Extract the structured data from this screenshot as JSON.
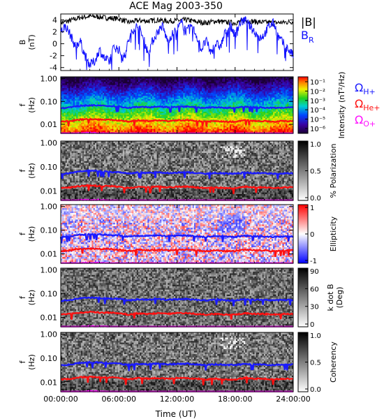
{
  "title": "ACE Mag 2003-350",
  "xlabel": "Time (UT)",
  "colors": {
    "total_field": "#000000",
    "radial_field": "#1010ff",
    "gyro_h": "#1a1aff",
    "gyro_he": "#ff1010",
    "gyro_o": "#ff10ff"
  },
  "chart_data": [
    {
      "panel": "field",
      "type": "line",
      "ylabel": "B (nT)",
      "ylabel_lines": [
        "B",
        "(nT)"
      ],
      "ylim": [
        -4.5,
        5
      ],
      "yticks": [
        4,
        2,
        0,
        -2,
        -4
      ],
      "xlim": [
        0,
        24
      ],
      "xticks_hours": [
        0,
        6,
        12,
        18,
        24
      ],
      "series": [
        {
          "name": "|B|",
          "x": [
            0,
            1,
            2,
            3,
            4,
            5,
            6,
            7,
            8,
            9,
            10,
            11,
            12,
            13,
            14,
            15,
            16,
            17,
            18,
            19,
            20,
            21,
            22,
            23,
            24
          ],
          "values": [
            3.5,
            3.9,
            4.4,
            4.6,
            4.5,
            4.3,
            4.2,
            3.6,
            3.9,
            3.8,
            4.0,
            3.8,
            3.9,
            4.0,
            3.7,
            3.5,
            3.8,
            3.6,
            3.5,
            3.9,
            3.7,
            3.6,
            3.5,
            3.6,
            3.7
          ]
        },
        {
          "name": "B_R",
          "x": [
            0,
            0.5,
            1,
            1.5,
            2,
            2.5,
            3,
            3.5,
            4,
            4.5,
            5,
            5.5,
            6,
            6.5,
            7,
            7.5,
            8,
            8.5,
            9,
            9.5,
            10,
            10.5,
            11,
            11.5,
            12,
            12.5,
            13,
            13.5,
            14,
            14.5,
            15,
            15.5,
            16,
            16.5,
            17,
            17.5,
            18,
            18.5,
            19,
            19.5,
            20,
            20.5,
            21,
            21.5,
            22,
            22.5,
            23,
            23.5,
            24
          ],
          "values": [
            2.0,
            3.0,
            1.5,
            -0.5,
            0.5,
            -2.0,
            -3.5,
            -3.0,
            -1.0,
            -2.5,
            -3.0,
            -0.5,
            -1.0,
            -2.5,
            0.5,
            2.5,
            3.0,
            1.0,
            -1.5,
            0.5,
            2.0,
            3.0,
            0.5,
            1.5,
            2.5,
            3.5,
            2.0,
            3.0,
            1.5,
            -1.0,
            0.5,
            -1.5,
            0.0,
            -0.5,
            2.0,
            3.0,
            1.5,
            3.5,
            4.0,
            3.0,
            2.0,
            1.0,
            1.5,
            3.0,
            3.5,
            1.0,
            0.0,
            -1.0,
            -2.0
          ]
        }
      ],
      "legend": [
        "|B|",
        "B_R"
      ]
    },
    {
      "panel": "intensity",
      "type": "heatmap",
      "ylabel": "f (Hz)",
      "yscale": "log",
      "ylim": [
        0.004,
        1.2
      ],
      "yticks": [
        "1.00",
        "0.10",
        "0.01"
      ],
      "colorbar_label": "Intensity (nT²/Hz)",
      "colorbar_ticks": [
        "10⁻¹",
        "10⁻²",
        "10⁻³",
        "10⁻⁴",
        "10⁻⁵",
        "10⁻⁶"
      ],
      "colorscale": "rainbow",
      "legend": [
        "Ω_H+",
        "Ω_He+",
        "Ω_O+"
      ]
    },
    {
      "panel": "polarization",
      "type": "heatmap",
      "ylabel": "f (Hz)",
      "yscale": "log",
      "ylim": [
        0.004,
        1.2
      ],
      "yticks": [
        "1.00",
        "0.10",
        "0.01"
      ],
      "colorbar_label": "% Polarization",
      "colorbar_ticks": [
        "1.0",
        "0.5",
        "0.0"
      ],
      "colorscale": "gray"
    },
    {
      "panel": "ellipticity",
      "type": "heatmap",
      "ylabel": "f (Hz)",
      "yscale": "log",
      "ylim": [
        0.004,
        1.2
      ],
      "yticks": [
        "1.00",
        "0.10",
        "0.01"
      ],
      "colorbar_label": "Ellipticity",
      "colorbar_ticks": [
        "1",
        "0",
        "-1"
      ],
      "colorscale": "blue-white-red"
    },
    {
      "panel": "k-dot-b",
      "type": "heatmap",
      "ylabel": "f (Hz)",
      "yscale": "log",
      "ylim": [
        0.004,
        1.2
      ],
      "yticks": [
        "1.00",
        "0.10",
        "0.01"
      ],
      "colorbar_label": "k dot B (Deg)",
      "colorbar_label_lines": [
        "k dot B",
        "(Deg)"
      ],
      "colorbar_ticks": [
        "90",
        "60",
        "30",
        "0"
      ],
      "colorscale": "gray-reversed"
    },
    {
      "panel": "coherency",
      "type": "heatmap",
      "ylabel": "f (Hz)",
      "yscale": "log",
      "ylim": [
        0.004,
        1.2
      ],
      "yticks": [
        "1.00",
        "0.10",
        "0.01"
      ],
      "colorbar_label": "Coherency",
      "colorbar_ticks": [
        "1.0",
        "0.5",
        "0.0"
      ],
      "colorscale": "gray"
    }
  ],
  "gyrofrequency_lines": {
    "x": [
      0,
      1,
      2,
      3,
      4,
      5,
      6,
      7,
      8,
      9,
      10,
      11,
      12,
      13,
      14,
      15,
      16,
      17,
      18,
      19,
      20,
      21,
      22,
      23,
      24
    ],
    "H+": [
      0.05,
      0.055,
      0.065,
      0.068,
      0.066,
      0.062,
      0.06,
      0.052,
      0.058,
      0.056,
      0.06,
      0.056,
      0.058,
      0.06,
      0.055,
      0.052,
      0.056,
      0.053,
      0.052,
      0.058,
      0.055,
      0.054,
      0.052,
      0.054,
      0.055
    ],
    "He+": [
      0.013,
      0.014,
      0.016,
      0.017,
      0.016,
      0.016,
      0.015,
      0.013,
      0.015,
      0.014,
      0.015,
      0.014,
      0.015,
      0.015,
      0.014,
      0.013,
      0.014,
      0.013,
      0.013,
      0.015,
      0.014,
      0.014,
      0.013,
      0.014,
      0.014
    ],
    "O+": [
      0.0033,
      0.0035,
      0.0041,
      0.0042,
      0.0041,
      0.0039,
      0.0038,
      0.0033,
      0.0036,
      0.0035,
      0.0037,
      0.0035,
      0.0036,
      0.0037,
      0.0034,
      0.0033,
      0.0035,
      0.0034,
      0.0033,
      0.0036,
      0.0035,
      0.0034,
      0.0033,
      0.0034,
      0.0035
    ]
  },
  "xtick_labels": [
    "00:00:00",
    "06:00:00",
    "12:00:00",
    "18:00:00",
    "24:00:00"
  ],
  "legend_labels": {
    "total": "|B|",
    "radial": "B",
    "radial_sub": "R",
    "omega": "Ω",
    "h": "H+",
    "he": "He+",
    "o": "O+"
  }
}
